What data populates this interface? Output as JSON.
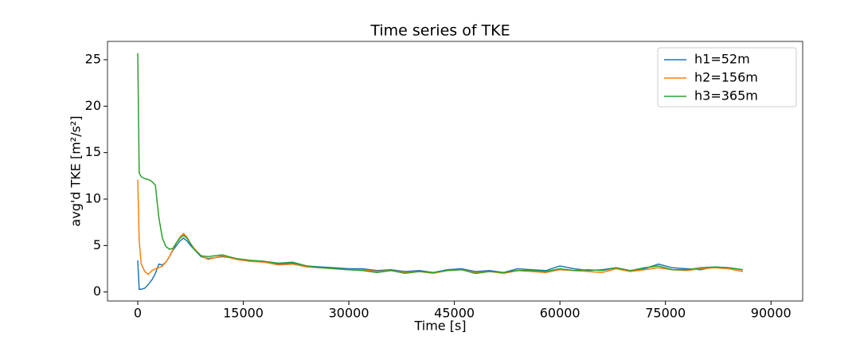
{
  "chart_data": {
    "type": "line",
    "title": "Time series of TKE",
    "x_label": "Time [s]",
    "y_label": "avg'd TKE [m²/s²]",
    "x": [
      0,
      200,
      500,
      1000,
      1500,
      2000,
      2500,
      3000,
      3500,
      4000,
      4500,
      5000,
      5500,
      6000,
      6500,
      7000,
      7500,
      8000,
      9000,
      10000,
      12000,
      14000,
      16000,
      18000,
      20000,
      22000,
      24000,
      26000,
      28000,
      30000,
      32000,
      34000,
      36000,
      38000,
      40000,
      42000,
      44000,
      46000,
      48000,
      50000,
      52000,
      54000,
      56000,
      58000,
      60000,
      62000,
      64000,
      66000,
      68000,
      70000,
      72000,
      74000,
      76000,
      78000,
      80000,
      82000,
      84000,
      86000
    ],
    "series": [
      {
        "name": "h1=52m",
        "color": "#1f77b4",
        "values": [
          3.4,
          0.3,
          0.3,
          0.4,
          0.8,
          1.3,
          2.0,
          3.0,
          2.9,
          3.2,
          3.8,
          4.5,
          5.0,
          5.5,
          5.8,
          5.5,
          5.0,
          4.6,
          3.8,
          3.6,
          3.8,
          3.6,
          3.4,
          3.3,
          3.0,
          3.1,
          2.8,
          2.7,
          2.6,
          2.5,
          2.5,
          2.3,
          2.4,
          2.2,
          2.3,
          2.1,
          2.4,
          2.5,
          2.2,
          2.3,
          2.1,
          2.5,
          2.4,
          2.3,
          2.8,
          2.5,
          2.3,
          2.4,
          2.6,
          2.3,
          2.5,
          3.0,
          2.6,
          2.5,
          2.4,
          2.7,
          2.6,
          2.4
        ]
      },
      {
        "name": "h2=156m",
        "color": "#ff7f0e",
        "values": [
          12.1,
          5.5,
          3.0,
          2.2,
          1.9,
          2.3,
          2.5,
          2.6,
          2.8,
          3.2,
          3.8,
          4.6,
          5.3,
          5.9,
          6.3,
          5.9,
          5.2,
          4.7,
          3.9,
          3.5,
          3.9,
          3.5,
          3.3,
          3.2,
          2.9,
          3.0,
          2.7,
          2.6,
          2.5,
          2.4,
          2.4,
          2.2,
          2.3,
          2.1,
          2.2,
          2.0,
          2.3,
          2.4,
          2.1,
          2.2,
          2.0,
          2.3,
          2.2,
          2.1,
          2.4,
          2.3,
          2.2,
          2.1,
          2.5,
          2.2,
          2.4,
          2.6,
          2.4,
          2.3,
          2.5,
          2.6,
          2.5,
          2.2
        ]
      },
      {
        "name": "h3=365m",
        "color": "#2ca02c",
        "values": [
          25.7,
          12.8,
          12.4,
          12.2,
          12.1,
          11.9,
          11.5,
          8.0,
          5.8,
          4.9,
          4.6,
          4.7,
          5.3,
          5.8,
          6.1,
          5.8,
          5.2,
          4.6,
          3.9,
          3.8,
          4.0,
          3.6,
          3.4,
          3.3,
          3.1,
          3.2,
          2.8,
          2.6,
          2.5,
          2.4,
          2.3,
          2.1,
          2.3,
          2.0,
          2.2,
          2.1,
          2.3,
          2.4,
          2.0,
          2.2,
          2.1,
          2.3,
          2.3,
          2.2,
          2.5,
          2.3,
          2.4,
          2.3,
          2.6,
          2.3,
          2.6,
          2.8,
          2.4,
          2.4,
          2.6,
          2.7,
          2.6,
          2.4
        ]
      }
    ],
    "xlim": [
      -4300,
      94500
    ],
    "xticks": [
      0,
      15000,
      30000,
      45000,
      60000,
      75000,
      90000
    ],
    "ylim": [
      -0.97,
      26.97
    ],
    "yticks": [
      0,
      5,
      10,
      15,
      20,
      25
    ],
    "legend": "upper right"
  }
}
